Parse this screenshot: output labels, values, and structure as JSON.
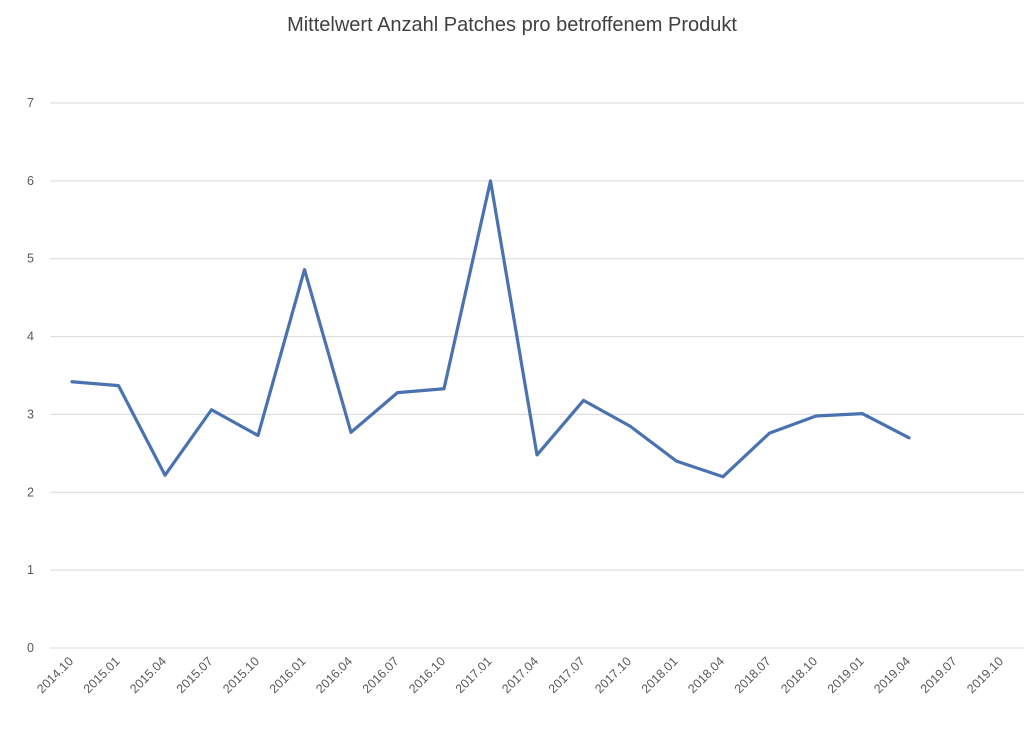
{
  "chart_data": {
    "type": "line",
    "title": "Mittelwert Anzahl Patches pro betroffenem Produkt",
    "xlabel": "",
    "ylabel": "",
    "ylim": [
      0,
      7
    ],
    "yticks": [
      "0",
      "1",
      "2",
      "3",
      "4",
      "5",
      "6",
      "7"
    ],
    "grid": true,
    "legend": "none",
    "categories": [
      "2014.10",
      "2015.01",
      "2015.04",
      "2015.07",
      "2015.10",
      "2016.01",
      "2016.04",
      "2016.07",
      "2016.10",
      "2017.01",
      "2017.04",
      "2017.07",
      "2017.10",
      "2018.01",
      "2018.04",
      "2018.07",
      "2018.10",
      "2019.01",
      "2019.04",
      "2019.07",
      "2019.10"
    ],
    "series": [
      {
        "color": "#4a72b0",
        "values": [
          3.42,
          3.37,
          2.22,
          3.06,
          2.73,
          4.86,
          2.77,
          3.28,
          3.33,
          6.0,
          2.48,
          3.18,
          2.85,
          2.4,
          2.2,
          2.76,
          2.98,
          3.01,
          2.7,
          null,
          null
        ]
      }
    ]
  }
}
